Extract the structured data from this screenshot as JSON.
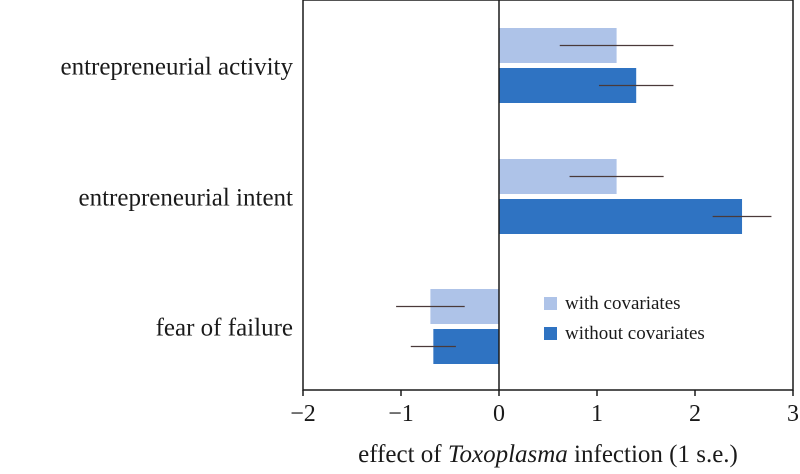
{
  "chart_data": {
    "type": "bar",
    "orientation": "horizontal",
    "categories": [
      "entrepreneurial activity",
      "entrepreneurial intent",
      "fear of failure"
    ],
    "series": [
      {
        "name": "with covariates",
        "color": "#aec3e8",
        "values": [
          1.2,
          1.2,
          -0.7
        ],
        "error": [
          0.58,
          0.48,
          0.35
        ]
      },
      {
        "name": "without covariates",
        "color": "#2f73c2",
        "values": [
          1.4,
          2.48,
          -0.67
        ],
        "error": [
          0.38,
          0.3,
          0.23
        ]
      }
    ],
    "xlim": [
      -2,
      3
    ],
    "xticks": [
      "−2",
      "−1",
      "0",
      "1",
      "2",
      "3"
    ],
    "xtick_values": [
      -2,
      -1,
      0,
      1,
      2,
      3
    ],
    "xlabel": {
      "prefix": "effect of ",
      "italic": "Toxoplasma",
      "suffix": " infection (1 s.e.)"
    },
    "legend_position": "lower-right",
    "grid": false
  }
}
